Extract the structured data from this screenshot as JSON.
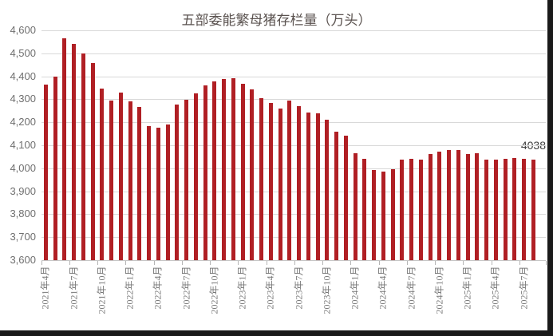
{
  "chart_data": {
    "type": "bar",
    "title": "五部委能繁母猪存栏量（万头）",
    "xlabel": "",
    "ylabel": "",
    "ylim": [
      3600,
      4600
    ],
    "y_tick_step": 100,
    "y_tick_labels": [
      "3,600",
      "3,700",
      "3,800",
      "3,900",
      "4,000",
      "4,100",
      "4,200",
      "4,300",
      "4,400",
      "4,500",
      "4,600"
    ],
    "grid": "horizontal",
    "legend": "none",
    "bar_color": "#b01f24",
    "categories": [
      "2021年4月",
      "2021年5月",
      "2021年6月",
      "2021年7月",
      "2021年8月",
      "2021年9月",
      "2021年10月",
      "2021年11月",
      "2021年12月",
      "2022年1月",
      "2022年2月",
      "2022年3月",
      "2022年4月",
      "2022年5月",
      "2022年6月",
      "2022年7月",
      "2022年8月",
      "2022年9月",
      "2022年10月",
      "2022年11月",
      "2022年12月",
      "2023年1月",
      "2023年2月",
      "2023年3月",
      "2023年4月",
      "2023年5月",
      "2023年6月",
      "2023年7月",
      "2023年8月",
      "2023年9月",
      "2023年10月",
      "2023年11月",
      "2023年12月",
      "2024年1月",
      "2024年2月",
      "2024年3月",
      "2024年4月",
      "2024年5月",
      "2024年6月",
      "2024年7月",
      "2024年8月",
      "2024年9月",
      "2024年10月",
      "2024年11月",
      "2024年12月",
      "2025年1月",
      "2025年2月",
      "2025年3月",
      "2025年4月",
      "2025年5月",
      "2025年6月",
      "2025年7月",
      "2025年8月"
    ],
    "values": [
      4364,
      4398,
      4564,
      4540,
      4500,
      4459,
      4348,
      4296,
      4329,
      4290,
      4268,
      4185,
      4177,
      4192,
      4277,
      4298,
      4324,
      4362,
      4379,
      4388,
      4390,
      4367,
      4343,
      4305,
      4284,
      4258,
      4296,
      4271,
      4241,
      4240,
      4210,
      4158,
      4142,
      4067,
      4042,
      3992,
      3986,
      3996,
      4038,
      4041,
      4036,
      4062,
      4073,
      4080,
      4078,
      4062,
      4066,
      4039,
      4038,
      4042,
      4043,
      4042,
      4038
    ],
    "x_tick_interval": 3,
    "x_tick_labels": [
      "2021年4月",
      "2021年7月",
      "2021年10月",
      "2022年1月",
      "2022年4月",
      "2022年7月",
      "2022年10月",
      "2023年1月",
      "2023年4月",
      "2023年7月",
      "2023年10月",
      "2024年1月",
      "2024年4月",
      "2024年7月",
      "2024年10月",
      "2025年1月",
      "2025年4月",
      "2025年7月"
    ],
    "last_point_label": "4038"
  },
  "colors": {
    "bar": "#b01f24",
    "gridline": "#d9d9d9",
    "axis_text": "#787878",
    "y_axis_text": "#6f6f6f",
    "title_text": "#5a524f",
    "data_label": "#3d3d3d",
    "background": "#ffffff",
    "frame_edge": "#1a1a1a"
  }
}
